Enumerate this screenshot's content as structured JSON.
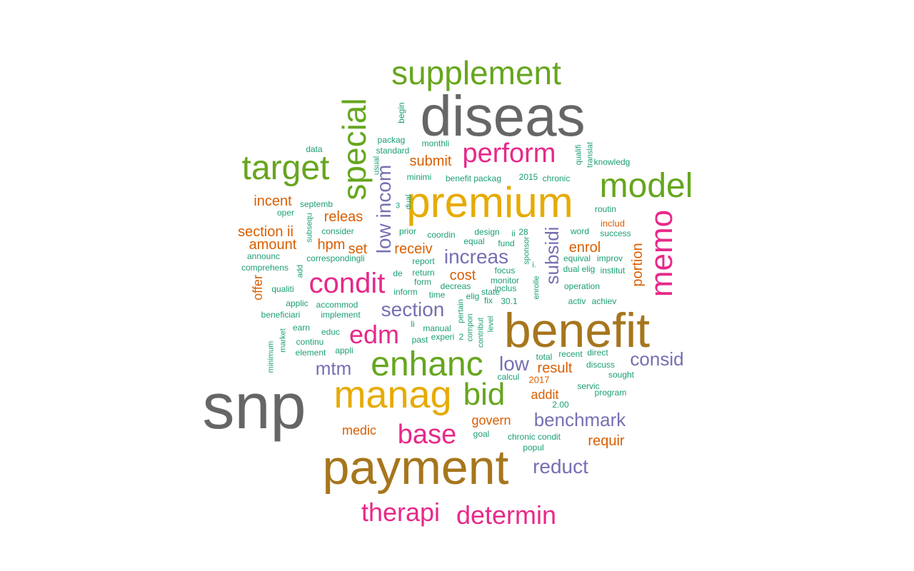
{
  "palette": {
    "teal": "#1b9e77",
    "orange": "#d95f02",
    "purple": "#7570b3",
    "pink": "#e7298a",
    "green": "#66a61e",
    "gold": "#e6ab02",
    "brown": "#a6761d",
    "gray": "#666666"
  },
  "words": [
    {
      "text": "snp",
      "color": "gray"
    },
    {
      "text": "diseas",
      "color": "gray"
    },
    {
      "text": "payment",
      "color": "brown"
    },
    {
      "text": "benefit",
      "color": "brown"
    },
    {
      "text": "premium",
      "color": "gold"
    },
    {
      "text": "manag",
      "color": "gold"
    },
    {
      "text": "supplement",
      "color": "green"
    },
    {
      "text": "enhanc",
      "color": "green"
    },
    {
      "text": "target",
      "color": "green"
    },
    {
      "text": "model",
      "color": "green"
    },
    {
      "text": "bid",
      "color": "green"
    },
    {
      "text": "special",
      "color": "green"
    },
    {
      "text": "memo",
      "color": "pink"
    },
    {
      "text": "condit",
      "color": "pink"
    },
    {
      "text": "perform",
      "color": "pink"
    },
    {
      "text": "edm",
      "color": "pink"
    },
    {
      "text": "base",
      "color": "pink"
    },
    {
      "text": "therapi",
      "color": "pink"
    },
    {
      "text": "determin",
      "color": "pink"
    },
    {
      "text": "low incom",
      "color": "purple"
    },
    {
      "text": "subsidi",
      "color": "purple"
    },
    {
      "text": "increas",
      "color": "purple"
    },
    {
      "text": "section",
      "color": "purple"
    },
    {
      "text": "low",
      "color": "purple"
    },
    {
      "text": "mtm",
      "color": "purple"
    },
    {
      "text": "consid",
      "color": "purple"
    },
    {
      "text": "benchmark",
      "color": "purple"
    },
    {
      "text": "reduct",
      "color": "purple"
    },
    {
      "text": "incent",
      "color": "orange"
    },
    {
      "text": "releas",
      "color": "orange"
    },
    {
      "text": "section ii",
      "color": "orange"
    },
    {
      "text": "amount",
      "color": "orange"
    },
    {
      "text": "hpm",
      "color": "orange"
    },
    {
      "text": "set",
      "color": "orange"
    },
    {
      "text": "receiv",
      "color": "orange"
    },
    {
      "text": "submit",
      "color": "orange"
    },
    {
      "text": "cost",
      "color": "orange"
    },
    {
      "text": "enrol",
      "color": "orange"
    },
    {
      "text": "portion",
      "color": "orange"
    },
    {
      "text": "offer",
      "color": "orange"
    },
    {
      "text": "result",
      "color": "orange"
    },
    {
      "text": "addit",
      "color": "orange"
    },
    {
      "text": "govern",
      "color": "orange"
    },
    {
      "text": "medic",
      "color": "orange"
    },
    {
      "text": "requir",
      "color": "orange"
    },
    {
      "text": "includ",
      "color": "orange"
    },
    {
      "text": "2017",
      "color": "orange"
    },
    {
      "text": "data",
      "color": "teal"
    },
    {
      "text": "begin",
      "color": "teal"
    },
    {
      "text": "packag",
      "color": "teal"
    },
    {
      "text": "standard",
      "color": "teal"
    },
    {
      "text": "monthli",
      "color": "teal"
    },
    {
      "text": "usual",
      "color": "teal"
    },
    {
      "text": "minimi",
      "color": "teal"
    },
    {
      "text": "benefit packag",
      "color": "teal"
    },
    {
      "text": "2015",
      "color": "teal"
    },
    {
      "text": "chronic",
      "color": "teal"
    },
    {
      "text": "qualifi",
      "color": "teal"
    },
    {
      "text": "translat",
      "color": "teal"
    },
    {
      "text": "knowledg",
      "color": "teal"
    },
    {
      "text": "septemb",
      "color": "teal"
    },
    {
      "text": "oper",
      "color": "teal"
    },
    {
      "text": "3",
      "color": "teal"
    },
    {
      "text": "dual",
      "color": "teal"
    },
    {
      "text": "routin",
      "color": "teal"
    },
    {
      "text": "subsequ",
      "color": "teal"
    },
    {
      "text": "consider",
      "color": "teal"
    },
    {
      "text": "prior",
      "color": "teal"
    },
    {
      "text": "coordin",
      "color": "teal"
    },
    {
      "text": "design",
      "color": "teal"
    },
    {
      "text": "ii",
      "color": "teal"
    },
    {
      "text": "28",
      "color": "teal"
    },
    {
      "text": "word",
      "color": "teal"
    },
    {
      "text": "success",
      "color": "teal"
    },
    {
      "text": "equal",
      "color": "teal"
    },
    {
      "text": "fund",
      "color": "teal"
    },
    {
      "text": "sponsor",
      "color": "teal"
    },
    {
      "text": "announc",
      "color": "teal"
    },
    {
      "text": "correspondingli",
      "color": "teal"
    },
    {
      "text": "report",
      "color": "teal"
    },
    {
      "text": "equival",
      "color": "teal"
    },
    {
      "text": "improv",
      "color": "teal"
    },
    {
      "text": "comprehens",
      "color": "teal"
    },
    {
      "text": "add",
      "color": "teal"
    },
    {
      "text": "focus",
      "color": "teal"
    },
    {
      "text": "i.",
      "color": "teal"
    },
    {
      "text": "dual elig",
      "color": "teal"
    },
    {
      "text": "institut",
      "color": "teal"
    },
    {
      "text": "de",
      "color": "teal"
    },
    {
      "text": "return",
      "color": "teal"
    },
    {
      "text": "form",
      "color": "teal"
    },
    {
      "text": "monitor",
      "color": "teal"
    },
    {
      "text": "decreas",
      "color": "teal"
    },
    {
      "text": "inclus",
      "color": "teal"
    },
    {
      "text": "enrolle",
      "color": "teal"
    },
    {
      "text": "operation",
      "color": "teal"
    },
    {
      "text": "qualiti",
      "color": "teal"
    },
    {
      "text": "inform",
      "color": "teal"
    },
    {
      "text": "time",
      "color": "teal"
    },
    {
      "text": "elig",
      "color": "teal"
    },
    {
      "text": "state",
      "color": "teal"
    },
    {
      "text": "activ",
      "color": "teal"
    },
    {
      "text": "achiev",
      "color": "teal"
    },
    {
      "text": "applic",
      "color": "teal"
    },
    {
      "text": "accommod",
      "color": "teal"
    },
    {
      "text": "pertain",
      "color": "teal"
    },
    {
      "text": "fix",
      "color": "teal"
    },
    {
      "text": "30.1",
      "color": "teal"
    },
    {
      "text": "beneficiari",
      "color": "teal"
    },
    {
      "text": "implement",
      "color": "teal"
    },
    {
      "text": "li",
      "color": "teal"
    },
    {
      "text": "compon",
      "color": "teal"
    },
    {
      "text": "level",
      "color": "teal"
    },
    {
      "text": "earn",
      "color": "teal"
    },
    {
      "text": "educ",
      "color": "teal"
    },
    {
      "text": "manual",
      "color": "teal"
    },
    {
      "text": "market",
      "color": "teal"
    },
    {
      "text": "past",
      "color": "teal"
    },
    {
      "text": "experi",
      "color": "teal"
    },
    {
      "text": "2",
      "color": "teal"
    },
    {
      "text": "contribut",
      "color": "teal"
    },
    {
      "text": "continu",
      "color": "teal"
    },
    {
      "text": "minimum",
      "color": "teal"
    },
    {
      "text": "element",
      "color": "teal"
    },
    {
      "text": "appli",
      "color": "teal"
    },
    {
      "text": "total",
      "color": "teal"
    },
    {
      "text": "recent",
      "color": "teal"
    },
    {
      "text": "direct",
      "color": "teal"
    },
    {
      "text": "discuss",
      "color": "teal"
    },
    {
      "text": "sought",
      "color": "teal"
    },
    {
      "text": "calcul",
      "color": "teal"
    },
    {
      "text": "servic",
      "color": "teal"
    },
    {
      "text": "program",
      "color": "teal"
    },
    {
      "text": "2.00",
      "color": "teal"
    },
    {
      "text": "goal",
      "color": "teal"
    },
    {
      "text": "chronic condit",
      "color": "teal"
    },
    {
      "text": "popul",
      "color": "teal"
    }
  ]
}
